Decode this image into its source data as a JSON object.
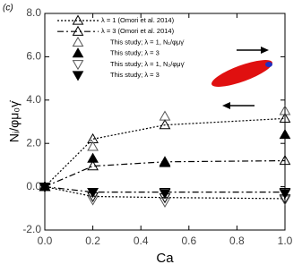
{
  "chart_data": {
    "type": "line",
    "panel_label": "(c)",
    "x_label": "Ca",
    "y_label": "Nᵢ/φμ₀γ̇",
    "x": [
      0,
      0.2,
      0.5,
      1.0
    ],
    "xlim": [
      0,
      1.0
    ],
    "xticks": [
      {
        "value": 0,
        "label": "0.0"
      },
      {
        "value": 0.2,
        "label": "0.2"
      },
      {
        "value": 0.4,
        "label": "0.4"
      },
      {
        "value": 0.6,
        "label": "0.6"
      },
      {
        "value": 0.8,
        "label": "0.8"
      },
      {
        "value": 1.0,
        "label": "1.0"
      }
    ],
    "ylim": [
      -2,
      8
    ],
    "yticks": [
      {
        "value": -2,
        "label": "-2.0"
      },
      {
        "value": 0,
        "label": "0.0"
      },
      {
        "value": 2,
        "label": "2.0"
      },
      {
        "value": 4,
        "label": "4.0"
      },
      {
        "value": 6,
        "label": "6.0"
      },
      {
        "value": 8,
        "label": "8.0"
      }
    ],
    "series": [
      {
        "name": "λ = 1 (Omori et al. 2014)",
        "dash": "2,2",
        "marker": "up",
        "filled": false,
        "color": "#000000",
        "values": [
          0,
          2.2,
          2.85,
          3.15
        ],
        "n2_values": [
          0,
          -0.45,
          -0.5,
          -0.55
        ]
      },
      {
        "name": "λ = 3 (Omori et al. 2014)",
        "dash": "7,3,2,3",
        "marker": "up",
        "filled": false,
        "color": "#000000",
        "values": [
          0,
          0.95,
          1.15,
          1.2
        ],
        "n2_values": [
          0,
          -0.25,
          -0.25,
          -0.25
        ]
      },
      {
        "name": "This study; λ = 1, N₁/φμγ̇",
        "marker": "up",
        "filled": false,
        "color": "#555555",
        "values": [
          0,
          1.85,
          3.25,
          3.5
        ]
      },
      {
        "name": "This study; λ = 3",
        "marker": "up",
        "filled": true,
        "color": "#000000",
        "values": [
          0,
          1.3,
          1.1,
          2.4
        ]
      },
      {
        "name": "This study; λ = 1, N₂/φμγ̇",
        "marker": "down",
        "filled": false,
        "color": "#555555",
        "values": [
          0,
          -0.6,
          -0.7,
          -0.6
        ]
      },
      {
        "name": "This study; λ = 3",
        "marker": "down",
        "filled": true,
        "color": "#000000",
        "values": [
          0,
          -0.25,
          -0.3,
          -0.3
        ]
      }
    ]
  }
}
